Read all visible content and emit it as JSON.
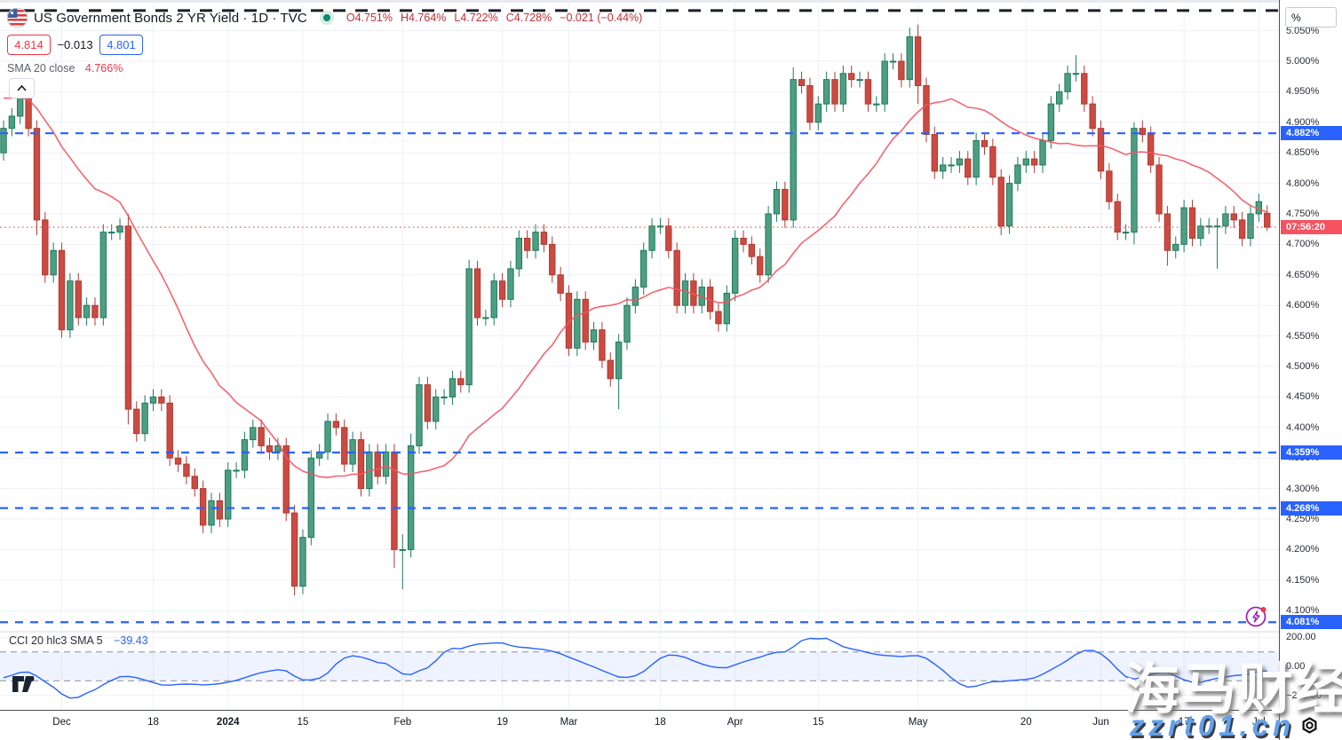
{
  "header": {
    "title": "US Government Bonds 2 YR Yield · 1D · TVC",
    "ohlc": {
      "o": "O4.751%",
      "h": "H4.764%",
      "l": "L4.722%",
      "c": "C4.728%",
      "change": "−0.021 (−0.44%)"
    },
    "sell_price": "4.814",
    "spread": "−0.013",
    "buy_price": "4.801",
    "sma_label": "SMA 20 close",
    "sma_value": "4.766%"
  },
  "indicator_legend": {
    "label": "CCI 20 hlc3 SMA 5",
    "value": "−39.43"
  },
  "axis": {
    "percent_button": "%",
    "price_ticks": [
      {
        "v": 5.05,
        "label": "5.050%"
      },
      {
        "v": 5.0,
        "label": "5.000%"
      },
      {
        "v": 4.95,
        "label": "4.950%"
      },
      {
        "v": 4.9,
        "label": "4.900%"
      },
      {
        "v": 4.85,
        "label": "4.850%"
      },
      {
        "v": 4.8,
        "label": "4.800%"
      },
      {
        "v": 4.75,
        "label": "4.750%"
      },
      {
        "v": 4.7,
        "label": "4.700%"
      },
      {
        "v": 4.65,
        "label": "4.650%"
      },
      {
        "v": 4.6,
        "label": "4.600%"
      },
      {
        "v": 4.55,
        "label": "4.550%"
      },
      {
        "v": 4.5,
        "label": "4.500%"
      },
      {
        "v": 4.45,
        "label": "4.450%"
      },
      {
        "v": 4.4,
        "label": "4.400%"
      },
      {
        "v": 4.35,
        "label": "4.350%"
      },
      {
        "v": 4.3,
        "label": "4.300%"
      },
      {
        "v": 4.25,
        "label": "4.250%"
      },
      {
        "v": 4.2,
        "label": "4.200%"
      },
      {
        "v": 4.15,
        "label": "4.150%"
      },
      {
        "v": 4.1,
        "label": "4.100%"
      }
    ],
    "cci_ticks": [
      {
        "v": 200,
        "label": "200.00"
      },
      {
        "v": 0,
        "label": "0.00"
      },
      {
        "v": -200,
        "label": "−200.00"
      }
    ],
    "countdown": {
      "label": "07:56:20",
      "price": 4.728
    }
  },
  "watermark": {
    "cjk": "海马财经",
    "latin": "zzrt01.cn"
  },
  "colors": {
    "up_fill": "#4e9e82",
    "up_stroke": "#1f7a5e",
    "down_fill": "#cb4a42",
    "down_stroke": "#b03a31",
    "sma_line": "#f2545f",
    "level_line": "#2962ff",
    "black_dash": "#1c1e27",
    "last_price_line": "#f7525f",
    "cci_line": "#2962ff",
    "grid": "#eef1f8",
    "band_fill": "rgba(41,98,255,0.08)",
    "band_edge": "#8b8f9b",
    "pane_divider": "#d6d9e0"
  },
  "chart_data": {
    "type": "candlestick",
    "title": "US Government Bonds 2 YR Yield, 1D, TVC",
    "ylabel": "%",
    "ylim": [
      4.05,
      5.083
    ],
    "levels": [
      {
        "price": 4.882,
        "label": "4.882%"
      },
      {
        "price": 4.359,
        "label": "4.359%"
      },
      {
        "price": 4.268,
        "label": "4.268%"
      },
      {
        "price": 4.081,
        "label": "4.081%"
      }
    ],
    "black_dash_level": 5.083,
    "last_price": 4.728,
    "default_wick": 0.013,
    "sma_seed": [
      4.91,
      4.93,
      4.96,
      5.02,
      5.05,
      5.07,
      5.04,
      5.0,
      4.96,
      4.93,
      4.89,
      4.84,
      4.86,
      4.91,
      4.88,
      4.9,
      4.92,
      4.93,
      4.9
    ],
    "closes": [
      4.89,
      4.91,
      4.95,
      4.89,
      4.74,
      4.65,
      4.69,
      4.56,
      4.64,
      4.58,
      4.6,
      4.58,
      4.72,
      4.72,
      4.73,
      4.43,
      4.39,
      4.44,
      4.45,
      4.44,
      4.35,
      4.34,
      4.32,
      4.3,
      4.24,
      4.28,
      4.25,
      4.33,
      4.33,
      4.38,
      4.4,
      4.37,
      4.36,
      4.37,
      4.26,
      4.14,
      4.22,
      4.35,
      4.36,
      4.41,
      4.4,
      4.34,
      4.38,
      4.3,
      4.36,
      4.32,
      4.36,
      4.2,
      4.2,
      4.37,
      4.47,
      4.41,
      4.45,
      4.45,
      4.48,
      4.47,
      4.66,
      4.58,
      4.58,
      4.64,
      4.61,
      4.66,
      4.71,
      4.69,
      4.72,
      4.7,
      4.65,
      4.62,
      4.53,
      4.61,
      4.54,
      4.56,
      4.51,
      4.48,
      4.54,
      4.6,
      4.63,
      4.69,
      4.73,
      4.73,
      4.69,
      4.6,
      4.64,
      4.6,
      4.63,
      4.59,
      4.57,
      4.62,
      4.71,
      4.7,
      4.68,
      4.65,
      4.75,
      4.79,
      4.74,
      4.97,
      4.96,
      4.9,
      4.93,
      4.97,
      4.93,
      4.98,
      4.97,
      4.97,
      4.93,
      4.93,
      5.0,
      5.0,
      4.97,
      5.04,
      4.96,
      4.88,
      4.82,
      4.83,
      4.83,
      4.84,
      4.81,
      4.87,
      4.86,
      4.81,
      4.73,
      4.8,
      4.83,
      4.84,
      4.83,
      4.87,
      4.93,
      4.95,
      4.98,
      4.98,
      4.93,
      4.89,
      4.82,
      4.77,
      4.72,
      4.72,
      4.89,
      4.88,
      4.83,
      4.75,
      4.69,
      4.7,
      4.76,
      4.71,
      4.73,
      4.73,
      4.73,
      4.75,
      4.74,
      4.71,
      4.75,
      4.77,
      4.728
    ],
    "overrides": {
      "0": {
        "o": 4.85
      },
      "4": {
        "l": 4.715
      },
      "15": {
        "h": 4.75,
        "l": 4.405
      },
      "35": {
        "l": 4.125
      },
      "47": {
        "l": 4.17
      },
      "48": {
        "l": 4.135,
        "h": 4.225
      },
      "49": {
        "h": 4.39
      },
      "56": {
        "h": 4.675
      },
      "74": {
        "l": 4.43
      },
      "95": {
        "h": 4.99
      },
      "109": {
        "h": 5.055
      },
      "110": {
        "h": 5.06,
        "l": 4.93
      },
      "120": {
        "l": 4.715
      },
      "129": {
        "h": 5.01
      },
      "136": {
        "h": 4.9,
        "l": 4.7
      },
      "140": {
        "l": 4.665
      },
      "146": {
        "l": 4.66
      },
      "152": {
        "o": 4.751,
        "h": 4.764,
        "l": 4.722
      }
    },
    "time_ticks": [
      {
        "i": 7,
        "label": "Dec"
      },
      {
        "i": 18,
        "label": "18"
      },
      {
        "i": 27,
        "label": "2024",
        "bold": true
      },
      {
        "i": 36,
        "label": "15"
      },
      {
        "i": 48,
        "label": "Feb"
      },
      {
        "i": 60,
        "label": "19"
      },
      {
        "i": 68,
        "label": "Mar"
      },
      {
        "i": 79,
        "label": "18"
      },
      {
        "i": 88,
        "label": "Apr"
      },
      {
        "i": 98,
        "label": "15"
      },
      {
        "i": 110,
        "label": "May"
      },
      {
        "i": 123,
        "label": "20"
      },
      {
        "i": 132,
        "label": "Jun"
      },
      {
        "i": 142,
        "label": "17"
      },
      {
        "i": 151,
        "label": "Jul"
      }
    ],
    "oscillator": {
      "type": "line",
      "name": "CCI 20 hlc3 SMA 5",
      "last_value": -39.43,
      "band": [
        -100,
        100
      ],
      "axis_range": [
        -200,
        200
      ]
    }
  }
}
